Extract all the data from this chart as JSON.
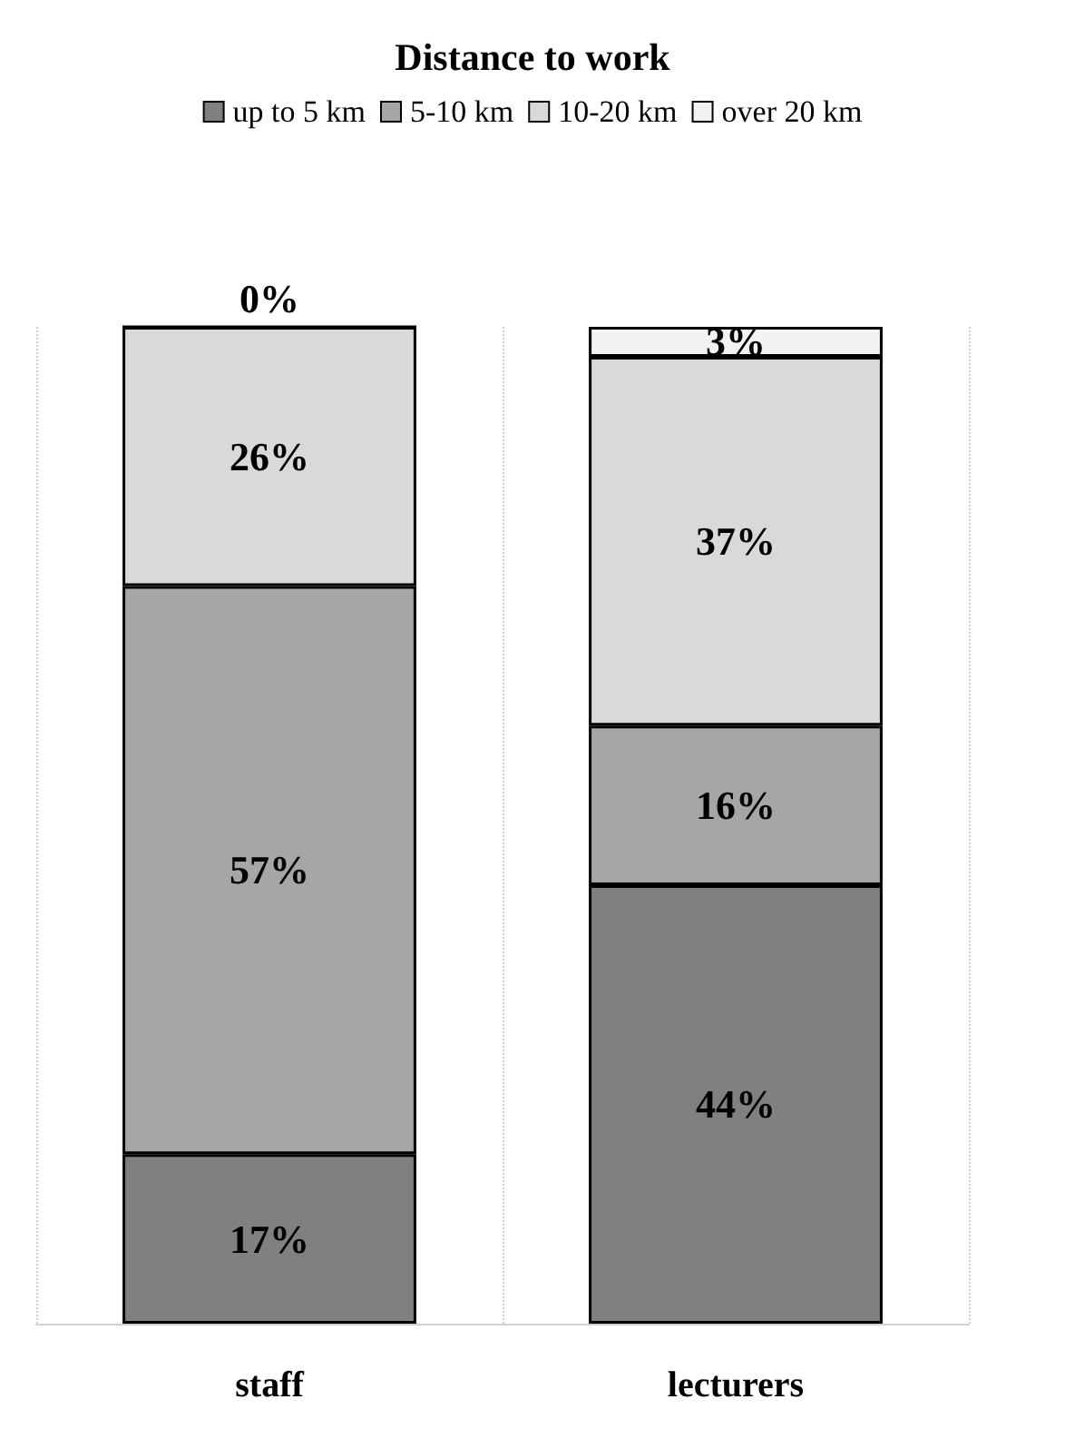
{
  "chart_data": {
    "type": "bar",
    "title": "Distance to work",
    "categories": [
      "staff",
      "lecturers"
    ],
    "stacked": true,
    "series": [
      {
        "name": "up to 5 km",
        "color": "#808080",
        "values": [
          17,
          44
        ],
        "value_labels": [
          "17%",
          "44%"
        ]
      },
      {
        "name": "5-10 km",
        "color": "#a6a6a6",
        "values": [
          57,
          16
        ],
        "value_labels": [
          "57%",
          "16%"
        ]
      },
      {
        "name": "10-20 km",
        "color": "#d9d9d9",
        "values": [
          26,
          37
        ],
        "value_labels": [
          "26%",
          "37%"
        ]
      },
      {
        "name": "over 20 km",
        "color": "#f2f2f2",
        "values": [
          0,
          3
        ],
        "value_labels": [
          "0%",
          "3%"
        ]
      }
    ],
    "ylim": [
      0,
      100
    ],
    "grid": "x",
    "legend": "top",
    "tick_labels": "x"
  }
}
